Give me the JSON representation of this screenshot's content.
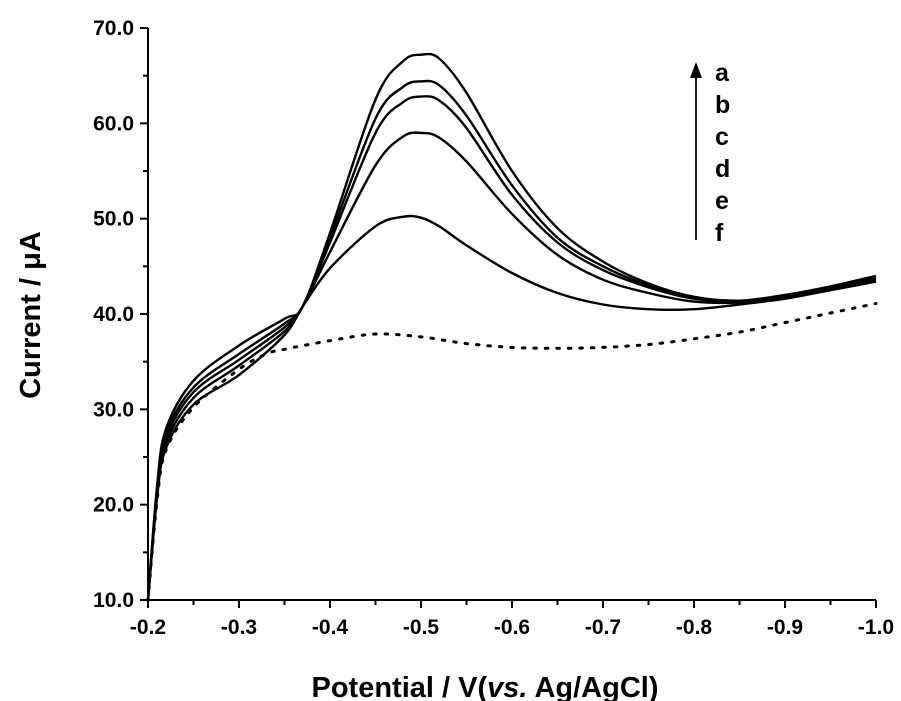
{
  "chart_data": {
    "type": "line",
    "xlabel_parts": [
      "Potential / V(",
      "vs.",
      " Ag/AgCl)"
    ],
    "ylabel": "Current / μA",
    "x_ticks": [
      -0.2,
      -0.3,
      -0.4,
      -0.5,
      -0.6,
      -0.7,
      -0.8,
      -0.9,
      -1.0
    ],
    "x_tick_labels": [
      "-0.2",
      "-0.3",
      "-0.4",
      "-0.5",
      "-0.6",
      "-0.7",
      "-0.8",
      "-0.9",
      "-1.0"
    ],
    "y_ticks": [
      10,
      20,
      30,
      40,
      50,
      60,
      70
    ],
    "y_tick_labels": [
      "10.0",
      "20.0",
      "30.0",
      "40.0",
      "50.0",
      "60.0",
      "70.0"
    ],
    "xlim": [
      -0.2,
      -1.0
    ],
    "ylim": [
      10,
      70
    ],
    "x_reversed": true,
    "grid": false,
    "legend_labels": [
      "a",
      "b",
      "c",
      "d",
      "e",
      "f"
    ],
    "line_color": "#000000",
    "series": [
      {
        "name": "a",
        "style": "solid",
        "x": [
          -0.2,
          -0.21,
          -0.22,
          -0.25,
          -0.3,
          -0.35,
          -0.37,
          -0.4,
          -0.45,
          -0.48,
          -0.5,
          -0.52,
          -0.55,
          -0.6,
          -0.65,
          -0.7,
          -0.75,
          -0.8,
          -0.85,
          -0.9,
          -0.95,
          -1.0
        ],
        "y": [
          10,
          22,
          28,
          33,
          36.7,
          39.5,
          40.8,
          48.5,
          62.5,
          66.5,
          67.2,
          66.8,
          63.2,
          55,
          49,
          45.5,
          43.2,
          41.8,
          41.4,
          42,
          42.9,
          44
        ]
      },
      {
        "name": "b",
        "style": "solid",
        "x": [
          -0.2,
          -0.21,
          -0.22,
          -0.25,
          -0.3,
          -0.35,
          -0.37,
          -0.4,
          -0.45,
          -0.48,
          -0.5,
          -0.52,
          -0.55,
          -0.6,
          -0.65,
          -0.7,
          -0.75,
          -0.8,
          -0.85,
          -0.9,
          -0.95,
          -1.0
        ],
        "y": [
          10,
          21.5,
          27.5,
          32.3,
          35.8,
          39,
          40.8,
          48,
          60.5,
          63.8,
          64.4,
          64,
          60.8,
          53.5,
          48,
          45,
          43,
          41.7,
          41.4,
          41.9,
          42.8,
          43.8
        ]
      },
      {
        "name": "c",
        "style": "solid",
        "x": [
          -0.2,
          -0.21,
          -0.22,
          -0.25,
          -0.3,
          -0.35,
          -0.37,
          -0.4,
          -0.45,
          -0.48,
          -0.5,
          -0.52,
          -0.55,
          -0.6,
          -0.65,
          -0.7,
          -0.75,
          -0.8,
          -0.85,
          -0.9,
          -0.95,
          -1.0
        ],
        "y": [
          10,
          21.2,
          27,
          31.8,
          35.2,
          38.6,
          40.8,
          47.5,
          59,
          62.2,
          62.8,
          62.4,
          59.5,
          52.5,
          47.5,
          44.6,
          42.8,
          41.6,
          41.3,
          41.8,
          42.7,
          43.6
        ]
      },
      {
        "name": "d",
        "style": "solid",
        "x": [
          -0.2,
          -0.21,
          -0.22,
          -0.25,
          -0.3,
          -0.35,
          -0.37,
          -0.4,
          -0.45,
          -0.48,
          -0.5,
          -0.52,
          -0.55,
          -0.6,
          -0.65,
          -0.7,
          -0.75,
          -0.8,
          -0.85,
          -0.9,
          -0.95,
          -1.0
        ],
        "y": [
          10,
          21,
          26.5,
          31.2,
          34.6,
          38.2,
          40.8,
          46.5,
          55.6,
          58.6,
          59,
          58.5,
          56,
          50.5,
          46.2,
          43.6,
          42.2,
          41.3,
          41.2,
          41.7,
          42.6,
          43.5
        ]
      },
      {
        "name": "e",
        "style": "solid",
        "x": [
          -0.2,
          -0.21,
          -0.22,
          -0.25,
          -0.3,
          -0.35,
          -0.37,
          -0.4,
          -0.45,
          -0.48,
          -0.5,
          -0.52,
          -0.55,
          -0.6,
          -0.65,
          -0.7,
          -0.75,
          -0.8,
          -0.85,
          -0.9,
          -0.95,
          -1.0
        ],
        "y": [
          10,
          20.8,
          26,
          30.5,
          33.6,
          37.8,
          40.8,
          44.8,
          49.2,
          50.2,
          50.1,
          49.2,
          47.2,
          44.3,
          42.2,
          41,
          40.5,
          40.5,
          41,
          41.6,
          42.5,
          43.4
        ]
      },
      {
        "name": "f",
        "style": "dotted",
        "x": [
          -0.2,
          -0.21,
          -0.22,
          -0.25,
          -0.3,
          -0.33,
          -0.35,
          -0.4,
          -0.45,
          -0.5,
          -0.55,
          -0.6,
          -0.65,
          -0.7,
          -0.75,
          -0.8,
          -0.85,
          -0.9,
          -0.95,
          -1.0
        ],
        "y": [
          10,
          20.5,
          25.8,
          30.2,
          34.2,
          35.8,
          36.3,
          37.2,
          37.9,
          37.6,
          36.9,
          36.5,
          36.4,
          36.5,
          36.8,
          37.4,
          38.1,
          39.1,
          40.1,
          41.1
        ]
      }
    ]
  }
}
